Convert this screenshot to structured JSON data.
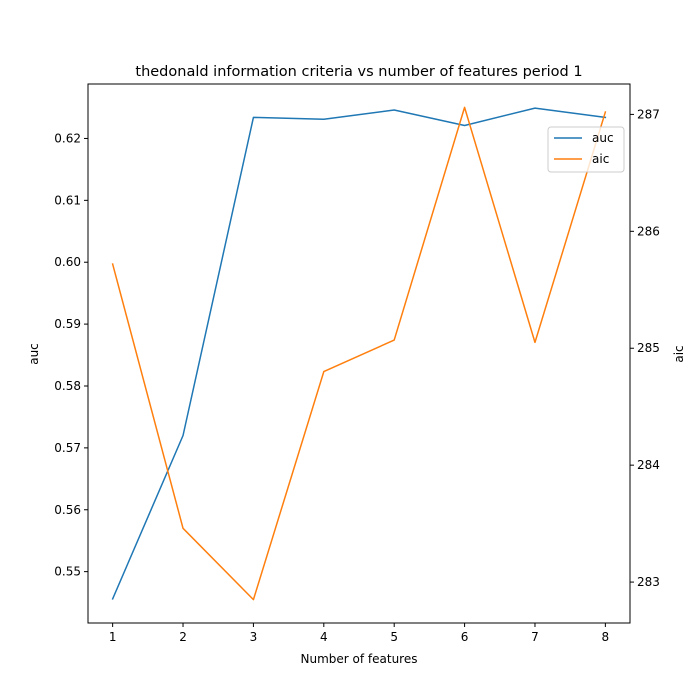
{
  "chart_data": {
    "type": "line",
    "title": "thedonald information criteria vs number of features period 1",
    "xlabel": "Number of features",
    "ylabel_left": "auc",
    "ylabel_right": "aic",
    "x": [
      1,
      2,
      3,
      4,
      5,
      6,
      7,
      8
    ],
    "x_ticks": [
      "1",
      "2",
      "3",
      "4",
      "5",
      "6",
      "7",
      "8"
    ],
    "xlim": [
      0.65,
      8.35
    ],
    "left_axis": {
      "ylim": [
        0.5417,
        0.6288
      ],
      "ticks": [
        0.55,
        0.56,
        0.57,
        0.58,
        0.59,
        0.6,
        0.61,
        0.62
      ],
      "tick_labels": [
        "0.55",
        "0.56",
        "0.57",
        "0.58",
        "0.59",
        "0.60",
        "0.61",
        "0.62"
      ]
    },
    "right_axis": {
      "ylim": [
        282.65,
        287.26
      ],
      "ticks": [
        283,
        284,
        285,
        286,
        287
      ],
      "tick_labels": [
        "283",
        "284",
        "285",
        "286",
        "287"
      ]
    },
    "series": [
      {
        "name": "auc",
        "axis": "left",
        "color": "#1f77b4",
        "values": [
          0.5456,
          0.572,
          0.6234,
          0.6231,
          0.6246,
          0.6221,
          0.6249,
          0.6234
        ]
      },
      {
        "name": "aic",
        "axis": "right",
        "color": "#ff7f0e",
        "values": [
          285.72,
          283.46,
          282.85,
          284.8,
          285.07,
          287.06,
          285.05,
          287.02
        ]
      }
    ],
    "legend": {
      "position": "upper-right",
      "entries": [
        "auc",
        "aic"
      ]
    },
    "grid": false
  }
}
